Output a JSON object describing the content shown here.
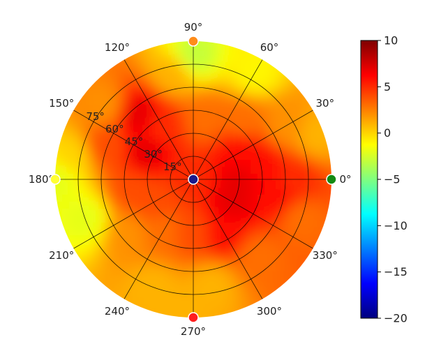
{
  "chart_data": {
    "type": "heatmap",
    "projection": "polar",
    "title": "",
    "angular_tick_labels": [
      "0°",
      "30°",
      "60°",
      "90°",
      "120°",
      "150°",
      "180°",
      "210°",
      "240°",
      "270°",
      "300°",
      "330°"
    ],
    "angular_ticks_deg": [
      0,
      30,
      60,
      90,
      120,
      150,
      180,
      210,
      240,
      270,
      300,
      330
    ],
    "radial_tick_labels": [
      "15°",
      "30°",
      "45°",
      "60°",
      "75°"
    ],
    "radial_ticks_deg": [
      15,
      30,
      45,
      60,
      75
    ],
    "radial_range_deg": [
      0,
      90
    ],
    "grid": true,
    "colorbar": {
      "range": [
        -20,
        10
      ],
      "tick_labels": [
        "10",
        "5",
        "0",
        "−5",
        "−10",
        "−15",
        "−20"
      ],
      "ticks": [
        10,
        5,
        0,
        -5,
        -10,
        -15,
        -20
      ],
      "colormap": "jet",
      "placement": "right"
    },
    "field_sample_points": [
      {
        "az": 0,
        "r": 0,
        "value": 5
      },
      {
        "az": 0,
        "r": 30,
        "value": 7
      },
      {
        "az": 10,
        "r": 45,
        "value": 6
      },
      {
        "az": 0,
        "r": 65,
        "value": 5
      },
      {
        "az": 30,
        "r": 35,
        "value": 6
      },
      {
        "az": 30,
        "r": 70,
        "value": 2
      },
      {
        "az": 50,
        "r": 50,
        "value": 3
      },
      {
        "az": 60,
        "r": 80,
        "value": -1
      },
      {
        "az": 80,
        "r": 40,
        "value": 3
      },
      {
        "az": 90,
        "r": 80,
        "value": -3
      },
      {
        "az": 100,
        "r": 70,
        "value": 1
      },
      {
        "az": 120,
        "r": 40,
        "value": 5
      },
      {
        "az": 130,
        "r": 55,
        "value": 7
      },
      {
        "az": 140,
        "r": 75,
        "value": 2
      },
      {
        "az": 150,
        "r": 35,
        "value": 7
      },
      {
        "az": 160,
        "r": 60,
        "value": 4
      },
      {
        "az": 170,
        "r": 80,
        "value": 0
      },
      {
        "az": 190,
        "r": 40,
        "value": 4
      },
      {
        "az": 200,
        "r": 75,
        "value": -2
      },
      {
        "az": 210,
        "r": 30,
        "value": 4
      },
      {
        "az": 220,
        "r": 55,
        "value": 2
      },
      {
        "az": 240,
        "r": 40,
        "value": 3
      },
      {
        "az": 250,
        "r": 75,
        "value": 1
      },
      {
        "az": 270,
        "r": 35,
        "value": 4
      },
      {
        "az": 280,
        "r": 70,
        "value": 1
      },
      {
        "az": 300,
        "r": 40,
        "value": 6
      },
      {
        "az": 310,
        "r": 65,
        "value": 3
      },
      {
        "az": 330,
        "r": 30,
        "value": 7
      },
      {
        "az": 340,
        "r": 75,
        "value": 3
      },
      {
        "az": 350,
        "r": 55,
        "value": 6
      },
      {
        "az": 20,
        "r": 85,
        "value": 1
      },
      {
        "az": 180,
        "r": 88,
        "value": -2
      },
      {
        "az": 265,
        "r": 88,
        "value": 1
      }
    ],
    "markers": [
      {
        "az": 0,
        "r": 90,
        "color": "#138a13"
      },
      {
        "az": 90,
        "r": 90,
        "color": "#ff8c1a"
      },
      {
        "az": 180,
        "r": 90,
        "color": "#ffff33"
      },
      {
        "az": 270,
        "r": 90,
        "color": "#ff1f1f"
      },
      {
        "az": 0,
        "r": 0,
        "color": "#1a1a8c"
      }
    ]
  }
}
